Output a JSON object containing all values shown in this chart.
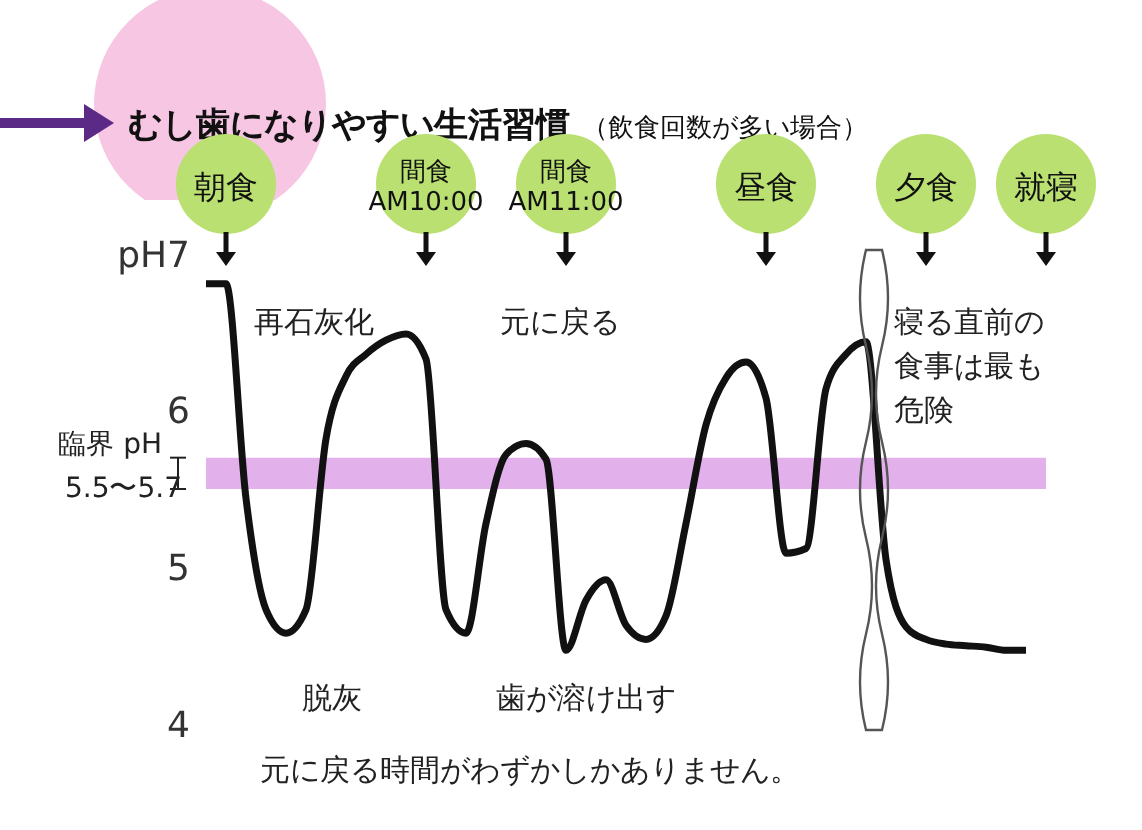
{
  "chart_data": {
    "type": "line",
    "title": "むし歯になりやすい生活習慣",
    "subtitle": "（飲食回数が多い場合）",
    "categories": [
      null,
      "朝食",
      null,
      null,
      null,
      null,
      null,
      null,
      null,
      null,
      null,
      "間食\nAM10:00",
      null,
      null,
      null,
      null,
      null,
      null,
      "間食\nAM11:00",
      null,
      null,
      null,
      null,
      null,
      null,
      null,
      null,
      null,
      "昼食",
      null,
      null,
      null,
      null,
      null,
      null,
      null,
      "夕食",
      null,
      null,
      null,
      null,
      null,
      "就寝"
    ],
    "series": [
      {
        "color": "#111111",
        "values": [
          6.81,
          6.81,
          5.44,
          4.73,
          4.58,
          4.73,
          5.82,
          6.22,
          6.36,
          6.45,
          6.49,
          6.33,
          4.73,
          4.58,
          5.28,
          5.72,
          5.79,
          5.69,
          4.47,
          4.79,
          4.92,
          4.63,
          4.54,
          4.69,
          5.28,
          5.91,
          6.21,
          6.31,
          6.08,
          5.09,
          5.12,
          6.14,
          6.36,
          6.44,
          5.05,
          4.62,
          4.54,
          4.51,
          4.5,
          4.49,
          4.47,
          4.47,
          null
        ]
      }
    ],
    "ylim": [
      4,
      7
    ],
    "yticks": [
      4,
      5,
      6,
      {
        "value": 7,
        "label": "pH7"
      }
    ],
    "bands": [
      {
        "axis": "y",
        "from": 5.5,
        "to": 5.7,
        "label": "臨界 pH\n5.5〜5.7",
        "color": "#e2b0ea"
      }
    ],
    "annotations": [
      "再石灰化",
      "元に戻る",
      "寝る直前の食事は最も危険",
      "脱灰",
      "歯が溶け出す",
      "元に戻る時間がわずかしかありません。"
    ],
    "marker": "none",
    "line_style": "solid",
    "grid": false,
    "legend": false
  }
}
